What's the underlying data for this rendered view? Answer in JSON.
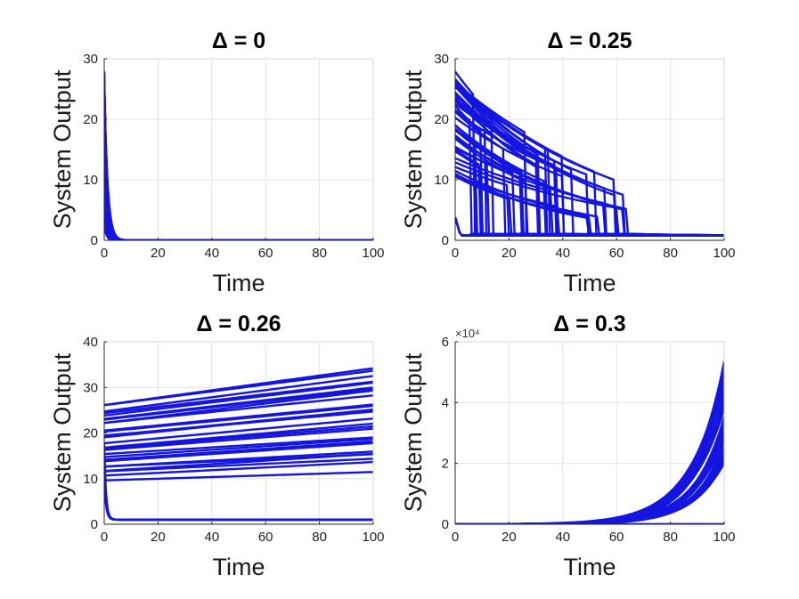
{
  "figure": {
    "background": "#ffffff",
    "series_color": "#1515e0"
  },
  "chart_data": [
    {
      "type": "line",
      "title": "Δ = 0",
      "xlabel": "Time",
      "ylabel": "System Output",
      "xlim": [
        0,
        100
      ],
      "ylim": [
        0,
        30
      ],
      "xticks": [
        0,
        20,
        40,
        60,
        80,
        100
      ],
      "yticks": [
        0,
        10,
        20,
        30
      ],
      "ytick_labels": [
        "0",
        "10",
        "20",
        "30"
      ],
      "exponent_label": "",
      "grid": true,
      "behavior": "decay",
      "series_count": 60,
      "initial_values_range": [
        2,
        28
      ],
      "decay_rate": 1.3,
      "x_steps": 60
    },
    {
      "type": "line",
      "title": "Δ = 0.25",
      "xlabel": "Time",
      "ylabel": "System Output",
      "xlim": [
        0,
        100
      ],
      "ylim": [
        0,
        30
      ],
      "xticks": [
        0,
        20,
        40,
        60,
        80,
        100
      ],
      "yticks": [
        0,
        10,
        20,
        30
      ],
      "ytick_labels": [
        "0",
        "10",
        "20",
        "30"
      ],
      "exponent_label": "",
      "grid": true,
      "behavior": "decay_then_drop",
      "series_count": 55,
      "initial_values_range": [
        10,
        28
      ],
      "decay_rate": 0.016,
      "drop_time_range": [
        5,
        66
      ],
      "settle_value": 0.8,
      "x_steps": 120
    },
    {
      "type": "line",
      "title": "Δ = 0.26",
      "xlabel": "Time",
      "ylabel": "System Output",
      "xlim": [
        0,
        100
      ],
      "ylim": [
        0,
        40
      ],
      "xticks": [
        0,
        20,
        40,
        60,
        80,
        100
      ],
      "yticks": [
        0,
        10,
        20,
        30,
        40
      ],
      "ytick_labels": [
        "0",
        "10",
        "20",
        "30",
        "40"
      ],
      "exponent_label": "",
      "grid": true,
      "behavior": "linear_growth",
      "series_count": 28,
      "start_values_range": [
        10,
        26.5
      ],
      "end_values_range": [
        12.5,
        34.5
      ],
      "settle_value": 1.0,
      "x_steps": 60
    },
    {
      "type": "line",
      "title": "Δ = 0.3",
      "xlabel": "Time",
      "ylabel": "System Output",
      "xlim": [
        0,
        100
      ],
      "ylim": [
        0,
        6
      ],
      "xticks": [
        0,
        20,
        40,
        60,
        80,
        100
      ],
      "yticks": [
        0,
        2,
        4,
        6
      ],
      "ytick_labels": [
        "0",
        "2",
        "4",
        "6"
      ],
      "exponent_label": "×10⁴",
      "grid": true,
      "behavior": "exponential_growth",
      "series_count": 45,
      "end_values_range": [
        2.0,
        5.4
      ],
      "growth_exponent": 0.085,
      "x_steps": 120
    }
  ]
}
